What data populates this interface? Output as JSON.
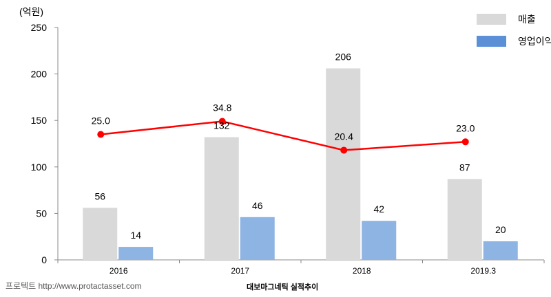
{
  "chart_data": {
    "type": "bar",
    "unit_label": "(억원)",
    "categories": [
      "2016",
      "2017",
      "2018",
      "2019.3"
    ],
    "ylim": [
      0,
      250
    ],
    "yticks": [
      0,
      50,
      100,
      150,
      200,
      250
    ],
    "grid": false,
    "legend_position": "top-right",
    "series": [
      {
        "name": "매출",
        "type": "bar",
        "color": "#d9d9d9",
        "values": [
          56,
          132,
          206,
          87
        ],
        "labels": [
          "56",
          "132",
          "206",
          "87"
        ]
      },
      {
        "name": "영업이익",
        "type": "bar",
        "color": "#8db4e2",
        "legend_color": "#5b8fd6",
        "values": [
          14,
          46,
          42,
          20
        ],
        "labels": [
          "14",
          "46",
          "42",
          "20"
        ]
      }
    ],
    "line_series": {
      "name": "",
      "type": "line",
      "color": "#ff0000",
      "values": [
        25.0,
        34.8,
        20.4,
        23.0
      ],
      "labels": [
        "25.0",
        "34.8",
        "20.4",
        "23.0"
      ],
      "plotted_on_scale_0_250_at": [
        135,
        149,
        118,
        127
      ]
    }
  },
  "footer": {
    "source": "프로텍트 http://www.protactasset.com",
    "caption": "대보마그네틱 실적추이"
  }
}
